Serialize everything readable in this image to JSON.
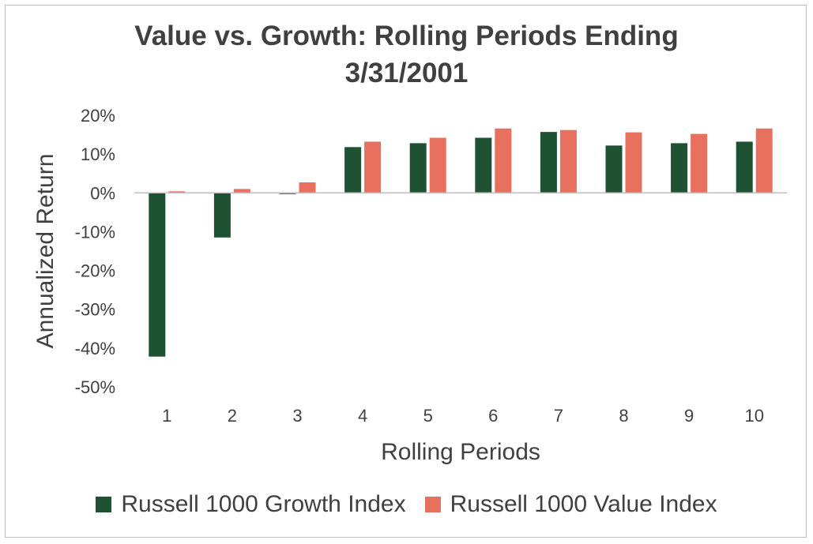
{
  "chart_data": {
    "type": "bar",
    "title_line1": "Value vs. Growth: Rolling Periods Ending",
    "title_line2": "3/31/2001",
    "xlabel": "Rolling Periods",
    "ylabel": "Annualized Return",
    "categories": [
      "1",
      "2",
      "3",
      "4",
      "5",
      "6",
      "7",
      "8",
      "9",
      "10"
    ],
    "ylim": [
      -50,
      20
    ],
    "yticks": [
      20,
      10,
      0,
      -10,
      -20,
      -30,
      -40,
      -50
    ],
    "ytick_labels": [
      "20%",
      "10%",
      "0%",
      "-10%",
      "-20%",
      "-30%",
      "-40%",
      "-50%"
    ],
    "series": [
      {
        "name": "Russell 1000 Growth Index",
        "color": "#1f5133",
        "values": [
          -42.2,
          -11.5,
          -0.3,
          11.8,
          12.8,
          14.2,
          15.7,
          12.2,
          12.8,
          13.2
        ]
      },
      {
        "name": "Russell 1000 Value Index",
        "color": "#e8705e",
        "values": [
          0.4,
          1.0,
          2.7,
          13.2,
          14.2,
          16.6,
          16.2,
          15.6,
          15.2,
          16.6
        ]
      }
    ],
    "legend_position": "bottom"
  }
}
